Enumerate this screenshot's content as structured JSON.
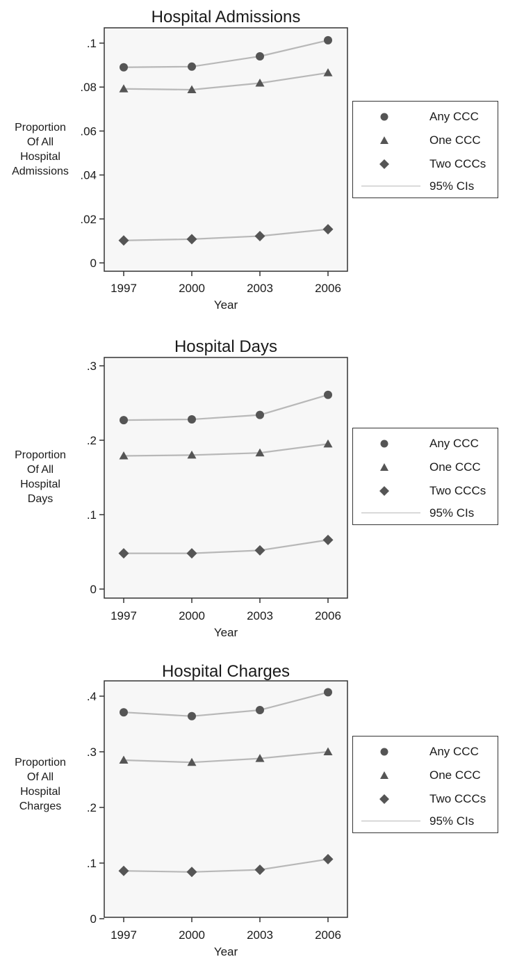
{
  "chart_data": [
    {
      "type": "line",
      "title": "Hospital Admissions",
      "xlabel": "Year",
      "ylabel": "Proportion\nOf All\nHospital\nAdmissions",
      "x": [
        1997,
        2000,
        2003,
        2006
      ],
      "x_ticks": [
        "1997",
        "2000",
        "2003",
        "2006"
      ],
      "ylim": [
        0,
        0.1
      ],
      "y_ticks": [
        0,
        0.02,
        0.04,
        0.06,
        0.08,
        0.1
      ],
      "y_tick_labels": [
        "0",
        ".02",
        ".04",
        ".06",
        ".08",
        ".1"
      ],
      "series": [
        {
          "name": "Any CCC",
          "marker": "circle",
          "values": [
            0.089,
            0.0893,
            0.094,
            0.1013
          ]
        },
        {
          "name": "One CCC",
          "marker": "triangle",
          "values": [
            0.0792,
            0.0788,
            0.0818,
            0.0865
          ]
        },
        {
          "name": "Two CCCs",
          "marker": "diamond",
          "values": [
            0.0102,
            0.0108,
            0.0122,
            0.0153
          ]
        }
      ],
      "ci_label": "95% CIs",
      "grid": false,
      "legend_position": "right"
    },
    {
      "type": "line",
      "title": "Hospital Days",
      "xlabel": "Year",
      "ylabel": "Proportion\nOf All\nHospital\nDays",
      "x": [
        1997,
        2000,
        2003,
        2006
      ],
      "x_ticks": [
        "1997",
        "2000",
        "2003",
        "2006"
      ],
      "ylim": [
        0,
        0.3
      ],
      "y_ticks": [
        0,
        0.1,
        0.2,
        0.3
      ],
      "y_tick_labels": [
        "0",
        ".1",
        ".2",
        ".3"
      ],
      "series": [
        {
          "name": "Any CCC",
          "marker": "circle",
          "values": [
            0.227,
            0.228,
            0.234,
            0.261
          ]
        },
        {
          "name": "One CCC",
          "marker": "triangle",
          "values": [
            0.179,
            0.18,
            0.183,
            0.195
          ]
        },
        {
          "name": "Two CCCs",
          "marker": "diamond",
          "values": [
            0.048,
            0.048,
            0.052,
            0.066
          ]
        }
      ],
      "ci_label": "95% CIs",
      "grid": false,
      "legend_position": "right"
    },
    {
      "type": "line",
      "title": "Hospital Charges",
      "xlabel": "Year",
      "ylabel": "Proportion\nOf All\nHospital\nCharges",
      "x": [
        1997,
        2000,
        2003,
        2006
      ],
      "x_ticks": [
        "1997",
        "2000",
        "2003",
        "2006"
      ],
      "ylim": [
        0,
        0.43
      ],
      "y_ticks": [
        0,
        0.1,
        0.2,
        0.3,
        0.4
      ],
      "y_tick_labels": [
        "0",
        ".1",
        ".2",
        ".3",
        ".4"
      ],
      "series": [
        {
          "name": "Any CCC",
          "marker": "circle",
          "values": [
            0.371,
            0.364,
            0.375,
            0.407
          ]
        },
        {
          "name": "One CCC",
          "marker": "triangle",
          "values": [
            0.285,
            0.281,
            0.288,
            0.3
          ]
        },
        {
          "name": "Two CCCs",
          "marker": "diamond",
          "values": [
            0.086,
            0.084,
            0.088,
            0.107
          ]
        }
      ],
      "ci_label": "95% CIs",
      "grid": false,
      "legend_position": "right"
    }
  ],
  "colors": {
    "plot_background": "#f7f7f7",
    "marker": "#555555",
    "line": "#b8b8b8",
    "axis": "#333333"
  }
}
